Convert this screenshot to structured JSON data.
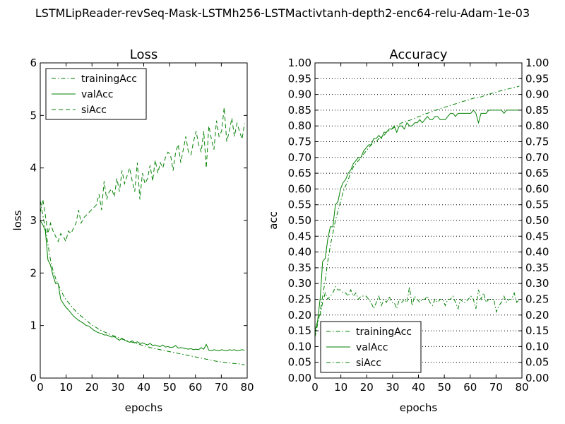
{
  "figure": {
    "suptitle": "LSTMLipReader-revSeq-Mask-LSTMh256-LSTMactivtanh-depth2-enc64-relu-Adam-1e-03"
  },
  "chart_data": [
    {
      "type": "line",
      "title": "Loss",
      "xlabel": "epochs",
      "ylabel": "loss",
      "xlim": [
        0,
        80
      ],
      "ylim": [
        0,
        6
      ],
      "xticks": [
        "0",
        "10",
        "20",
        "30",
        "40",
        "50",
        "60",
        "70",
        "80"
      ],
      "yticks": [
        "0",
        "1",
        "2",
        "3",
        "4",
        "5",
        "6"
      ],
      "grid": false,
      "legend_position": "upper-left",
      "color": "#008000",
      "series": [
        {
          "name": "trainingAcc",
          "style": "dashdot",
          "values": [
            3.38,
            3.1,
            2.85,
            2.55,
            2.25,
            2.05,
            1.9,
            1.78,
            1.68,
            1.58,
            1.5,
            1.44,
            1.38,
            1.32,
            1.27,
            1.22,
            1.18,
            1.14,
            1.1,
            1.06,
            1.02,
            0.99,
            0.96,
            0.93,
            0.9,
            0.88,
            0.86,
            0.84,
            0.82,
            0.8,
            0.78,
            0.76,
            0.74,
            0.73,
            0.71,
            0.7,
            0.68,
            0.67,
            0.65,
            0.64,
            0.62,
            0.61,
            0.6,
            0.58,
            0.57,
            0.56,
            0.55,
            0.54,
            0.53,
            0.52,
            0.51,
            0.5,
            0.49,
            0.48,
            0.47,
            0.46,
            0.45,
            0.44,
            0.43,
            0.42,
            0.41,
            0.4,
            0.39,
            0.38,
            0.37,
            0.36,
            0.35,
            0.34,
            0.33,
            0.32,
            0.31,
            0.31,
            0.3,
            0.29,
            0.29,
            0.28,
            0.28,
            0.27,
            0.27,
            0.26,
            0.25
          ]
        },
        {
          "name": "valAcc",
          "style": "solid",
          "values": [
            3.0,
            2.92,
            2.8,
            2.25,
            2.15,
            1.95,
            1.8,
            1.8,
            1.5,
            1.42,
            1.35,
            1.3,
            1.24,
            1.18,
            1.14,
            1.1,
            1.07,
            1.04,
            1.0,
            0.99,
            0.95,
            0.91,
            0.88,
            0.86,
            0.85,
            0.82,
            0.82,
            0.8,
            0.78,
            0.79,
            0.75,
            0.72,
            0.76,
            0.72,
            0.7,
            0.68,
            0.71,
            0.67,
            0.69,
            0.66,
            0.67,
            0.65,
            0.63,
            0.66,
            0.62,
            0.63,
            0.61,
            0.6,
            0.63,
            0.59,
            0.6,
            0.58,
            0.59,
            0.62,
            0.57,
            0.58,
            0.57,
            0.56,
            0.55,
            0.56,
            0.54,
            0.55,
            0.54,
            0.58,
            0.55,
            0.64,
            0.53,
            0.52,
            0.54,
            0.53,
            0.52,
            0.54,
            0.53,
            0.52,
            0.54,
            0.53,
            0.54,
            0.52,
            0.53,
            0.54,
            0.53
          ]
        },
        {
          "name": "siAcc",
          "style": "dashed",
          "values": [
            3.15,
            3.4,
            3.1,
            2.75,
            2.95,
            2.8,
            2.7,
            2.6,
            2.75,
            2.7,
            2.6,
            2.8,
            2.75,
            2.85,
            2.95,
            3.2,
            2.95,
            3.05,
            3.1,
            3.15,
            3.2,
            3.25,
            3.3,
            3.5,
            3.2,
            3.75,
            3.4,
            3.55,
            3.6,
            3.45,
            3.8,
            3.55,
            3.95,
            3.7,
            3.85,
            4.0,
            3.75,
            3.55,
            4.1,
            3.4,
            3.9,
            3.7,
            3.8,
            4.05,
            3.75,
            4.15,
            3.9,
            4.1,
            4.0,
            4.2,
            4.3,
            4.25,
            3.95,
            4.3,
            4.45,
            4.1,
            4.35,
            4.6,
            4.3,
            4.25,
            4.5,
            4.7,
            4.45,
            4.3,
            4.7,
            4.0,
            4.8,
            4.55,
            4.35,
            4.9,
            4.6,
            4.7,
            5.15,
            4.5,
            4.7,
            4.95,
            4.6,
            4.85,
            4.7,
            4.55,
            4.85
          ]
        }
      ]
    },
    {
      "type": "line",
      "title": "Accuracy",
      "xlabel": "epochs",
      "ylabel": "acc",
      "xlim": [
        0,
        80
      ],
      "ylim": [
        0,
        1
      ],
      "xticks": [
        "0",
        "10",
        "20",
        "30",
        "40",
        "50",
        "60",
        "70",
        "80"
      ],
      "yticks": [
        "0.00",
        "0.05",
        "0.10",
        "0.15",
        "0.20",
        "0.25",
        "0.30",
        "0.35",
        "0.40",
        "0.45",
        "0.50",
        "0.55",
        "0.60",
        "0.65",
        "0.70",
        "0.75",
        "0.80",
        "0.85",
        "0.90",
        "0.95",
        "1.00"
      ],
      "right_axis_ticks": true,
      "grid": true,
      "grid_axis": "y",
      "legend_position": "lower-left",
      "color": "#008000",
      "series": [
        {
          "name": "trainingAcc",
          "style": "dashdot",
          "values": [
            0.13,
            0.17,
            0.21,
            0.26,
            0.31,
            0.37,
            0.42,
            0.46,
            0.5,
            0.53,
            0.56,
            0.59,
            0.61,
            0.63,
            0.65,
            0.67,
            0.68,
            0.69,
            0.7,
            0.71,
            0.72,
            0.73,
            0.74,
            0.745,
            0.75,
            0.76,
            0.765,
            0.77,
            0.78,
            0.785,
            0.79,
            0.795,
            0.8,
            0.805,
            0.81,
            0.812,
            0.815,
            0.818,
            0.82,
            0.824,
            0.828,
            0.83,
            0.835,
            0.838,
            0.84,
            0.843,
            0.846,
            0.849,
            0.852,
            0.855,
            0.858,
            0.86,
            0.862,
            0.865,
            0.868,
            0.87,
            0.872,
            0.875,
            0.878,
            0.88,
            0.882,
            0.885,
            0.888,
            0.889,
            0.89,
            0.892,
            0.895,
            0.898,
            0.9,
            0.903,
            0.905,
            0.907,
            0.91,
            0.912,
            0.914,
            0.916,
            0.918,
            0.92,
            0.922,
            0.924,
            0.926
          ]
        },
        {
          "name": "valAcc",
          "style": "solid",
          "values": [
            0.15,
            0.18,
            0.25,
            0.37,
            0.38,
            0.44,
            0.48,
            0.48,
            0.55,
            0.56,
            0.6,
            0.62,
            0.63,
            0.65,
            0.66,
            0.68,
            0.69,
            0.7,
            0.7,
            0.72,
            0.73,
            0.74,
            0.74,
            0.76,
            0.76,
            0.77,
            0.76,
            0.78,
            0.78,
            0.79,
            0.79,
            0.8,
            0.78,
            0.8,
            0.8,
            0.79,
            0.81,
            0.8,
            0.8,
            0.81,
            0.81,
            0.82,
            0.81,
            0.82,
            0.83,
            0.82,
            0.82,
            0.83,
            0.83,
            0.82,
            0.82,
            0.82,
            0.83,
            0.84,
            0.84,
            0.83,
            0.84,
            0.84,
            0.84,
            0.84,
            0.84,
            0.84,
            0.85,
            0.84,
            0.81,
            0.84,
            0.84,
            0.84,
            0.85,
            0.85,
            0.85,
            0.85,
            0.85,
            0.85,
            0.84,
            0.85,
            0.85,
            0.85,
            0.85,
            0.85,
            0.85
          ]
        },
        {
          "name": "siAcc",
          "style": "dashdot",
          "values": [
            0.14,
            0.18,
            0.2,
            0.24,
            0.27,
            0.25,
            0.26,
            0.27,
            0.29,
            0.28,
            0.28,
            0.27,
            0.27,
            0.26,
            0.28,
            0.26,
            0.27,
            0.25,
            0.26,
            0.26,
            0.26,
            0.25,
            0.24,
            0.22,
            0.24,
            0.26,
            0.23,
            0.25,
            0.24,
            0.26,
            0.24,
            0.24,
            0.22,
            0.25,
            0.24,
            0.25,
            0.24,
            0.29,
            0.23,
            0.26,
            0.25,
            0.24,
            0.25,
            0.25,
            0.26,
            0.24,
            0.23,
            0.25,
            0.24,
            0.25,
            0.25,
            0.23,
            0.25,
            0.25,
            0.26,
            0.24,
            0.22,
            0.25,
            0.24,
            0.24,
            0.25,
            0.26,
            0.25,
            0.22,
            0.28,
            0.25,
            0.27,
            0.24,
            0.25,
            0.25,
            0.25,
            0.21,
            0.23,
            0.24,
            0.26,
            0.24,
            0.25,
            0.25,
            0.27,
            0.24,
            0.25
          ]
        }
      ]
    }
  ]
}
